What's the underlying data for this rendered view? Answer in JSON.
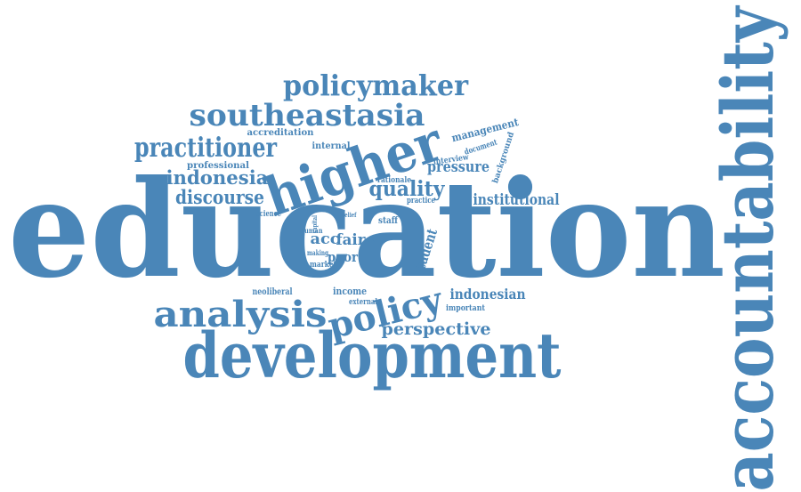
{
  "style": {
    "word_color": "#4a86b8",
    "background": "#ffffff"
  },
  "words": [
    {
      "id": "education",
      "text": "education",
      "size": "largest"
    },
    {
      "id": "accountability",
      "text": "accountability",
      "size": "very-large",
      "orientation": "vertical"
    },
    {
      "id": "development",
      "text": "development",
      "size": "large"
    },
    {
      "id": "higher",
      "text": "higher",
      "size": "large",
      "orientation": "rotated"
    },
    {
      "id": "analysis",
      "text": "analysis",
      "size": "medium"
    },
    {
      "id": "policy",
      "text": "policy",
      "size": "medium",
      "orientation": "rotated"
    },
    {
      "id": "southeastasia",
      "text": "southeastasia",
      "size": "medium"
    },
    {
      "id": "policymaker",
      "text": "policymaker",
      "size": "medium"
    },
    {
      "id": "practitioner",
      "text": "practitioner",
      "size": "medium"
    },
    {
      "id": "indonesia",
      "text": "indonesia",
      "size": "small"
    },
    {
      "id": "discourse",
      "text": "discourse",
      "size": "small"
    },
    {
      "id": "quality",
      "text": "quality",
      "size": "small"
    },
    {
      "id": "pressure",
      "text": "pressure",
      "size": "small"
    },
    {
      "id": "institutional",
      "text": "institutional",
      "size": "small"
    },
    {
      "id": "perspective",
      "text": "perspective",
      "size": "small"
    },
    {
      "id": "indonesian",
      "text": "indonesian",
      "size": "small"
    },
    {
      "id": "management",
      "text": "management",
      "size": "small",
      "orientation": "rotated"
    },
    {
      "id": "student",
      "text": "student",
      "size": "small",
      "orientation": "rotated"
    },
    {
      "id": "accreditation",
      "text": "accreditation",
      "size": "tiny"
    },
    {
      "id": "internal",
      "text": "internal",
      "size": "tiny"
    },
    {
      "id": "professional",
      "text": "professional",
      "size": "tiny"
    },
    {
      "id": "document",
      "text": "document",
      "size": "tiny",
      "orientation": "rotated"
    },
    {
      "id": "background",
      "text": "background",
      "size": "tiny",
      "orientation": "rotated"
    },
    {
      "id": "interview",
      "text": "interview",
      "size": "tiny",
      "orientation": "rotated"
    },
    {
      "id": "rationale",
      "text": "rationale",
      "size": "tiny"
    },
    {
      "id": "practice",
      "text": "practice",
      "size": "tiny"
    },
    {
      "id": "acc",
      "text": "acc",
      "size": "small"
    },
    {
      "id": "fair",
      "text": "fair",
      "size": "small"
    },
    {
      "id": "poor",
      "text": "poor",
      "size": "small"
    },
    {
      "id": "staff",
      "text": "staff",
      "size": "tiny"
    },
    {
      "id": "belief",
      "text": "belief",
      "size": "tiny"
    },
    {
      "id": "capital",
      "text": "capital",
      "size": "tiny",
      "orientation": "vertical"
    },
    {
      "id": "human",
      "text": "human",
      "size": "tiny"
    },
    {
      "id": "making",
      "text": "making",
      "size": "tiny"
    },
    {
      "id": "market",
      "text": "market",
      "size": "tiny"
    },
    {
      "id": "rural",
      "text": "rural",
      "size": "tiny"
    },
    {
      "id": "science",
      "text": "science",
      "size": "tiny"
    },
    {
      "id": "neoliberal",
      "text": "neoliberal",
      "size": "tiny"
    },
    {
      "id": "income",
      "text": "income",
      "size": "tiny"
    },
    {
      "id": "external",
      "text": "external",
      "size": "tiny"
    },
    {
      "id": "important",
      "text": "important",
      "size": "tiny"
    }
  ]
}
